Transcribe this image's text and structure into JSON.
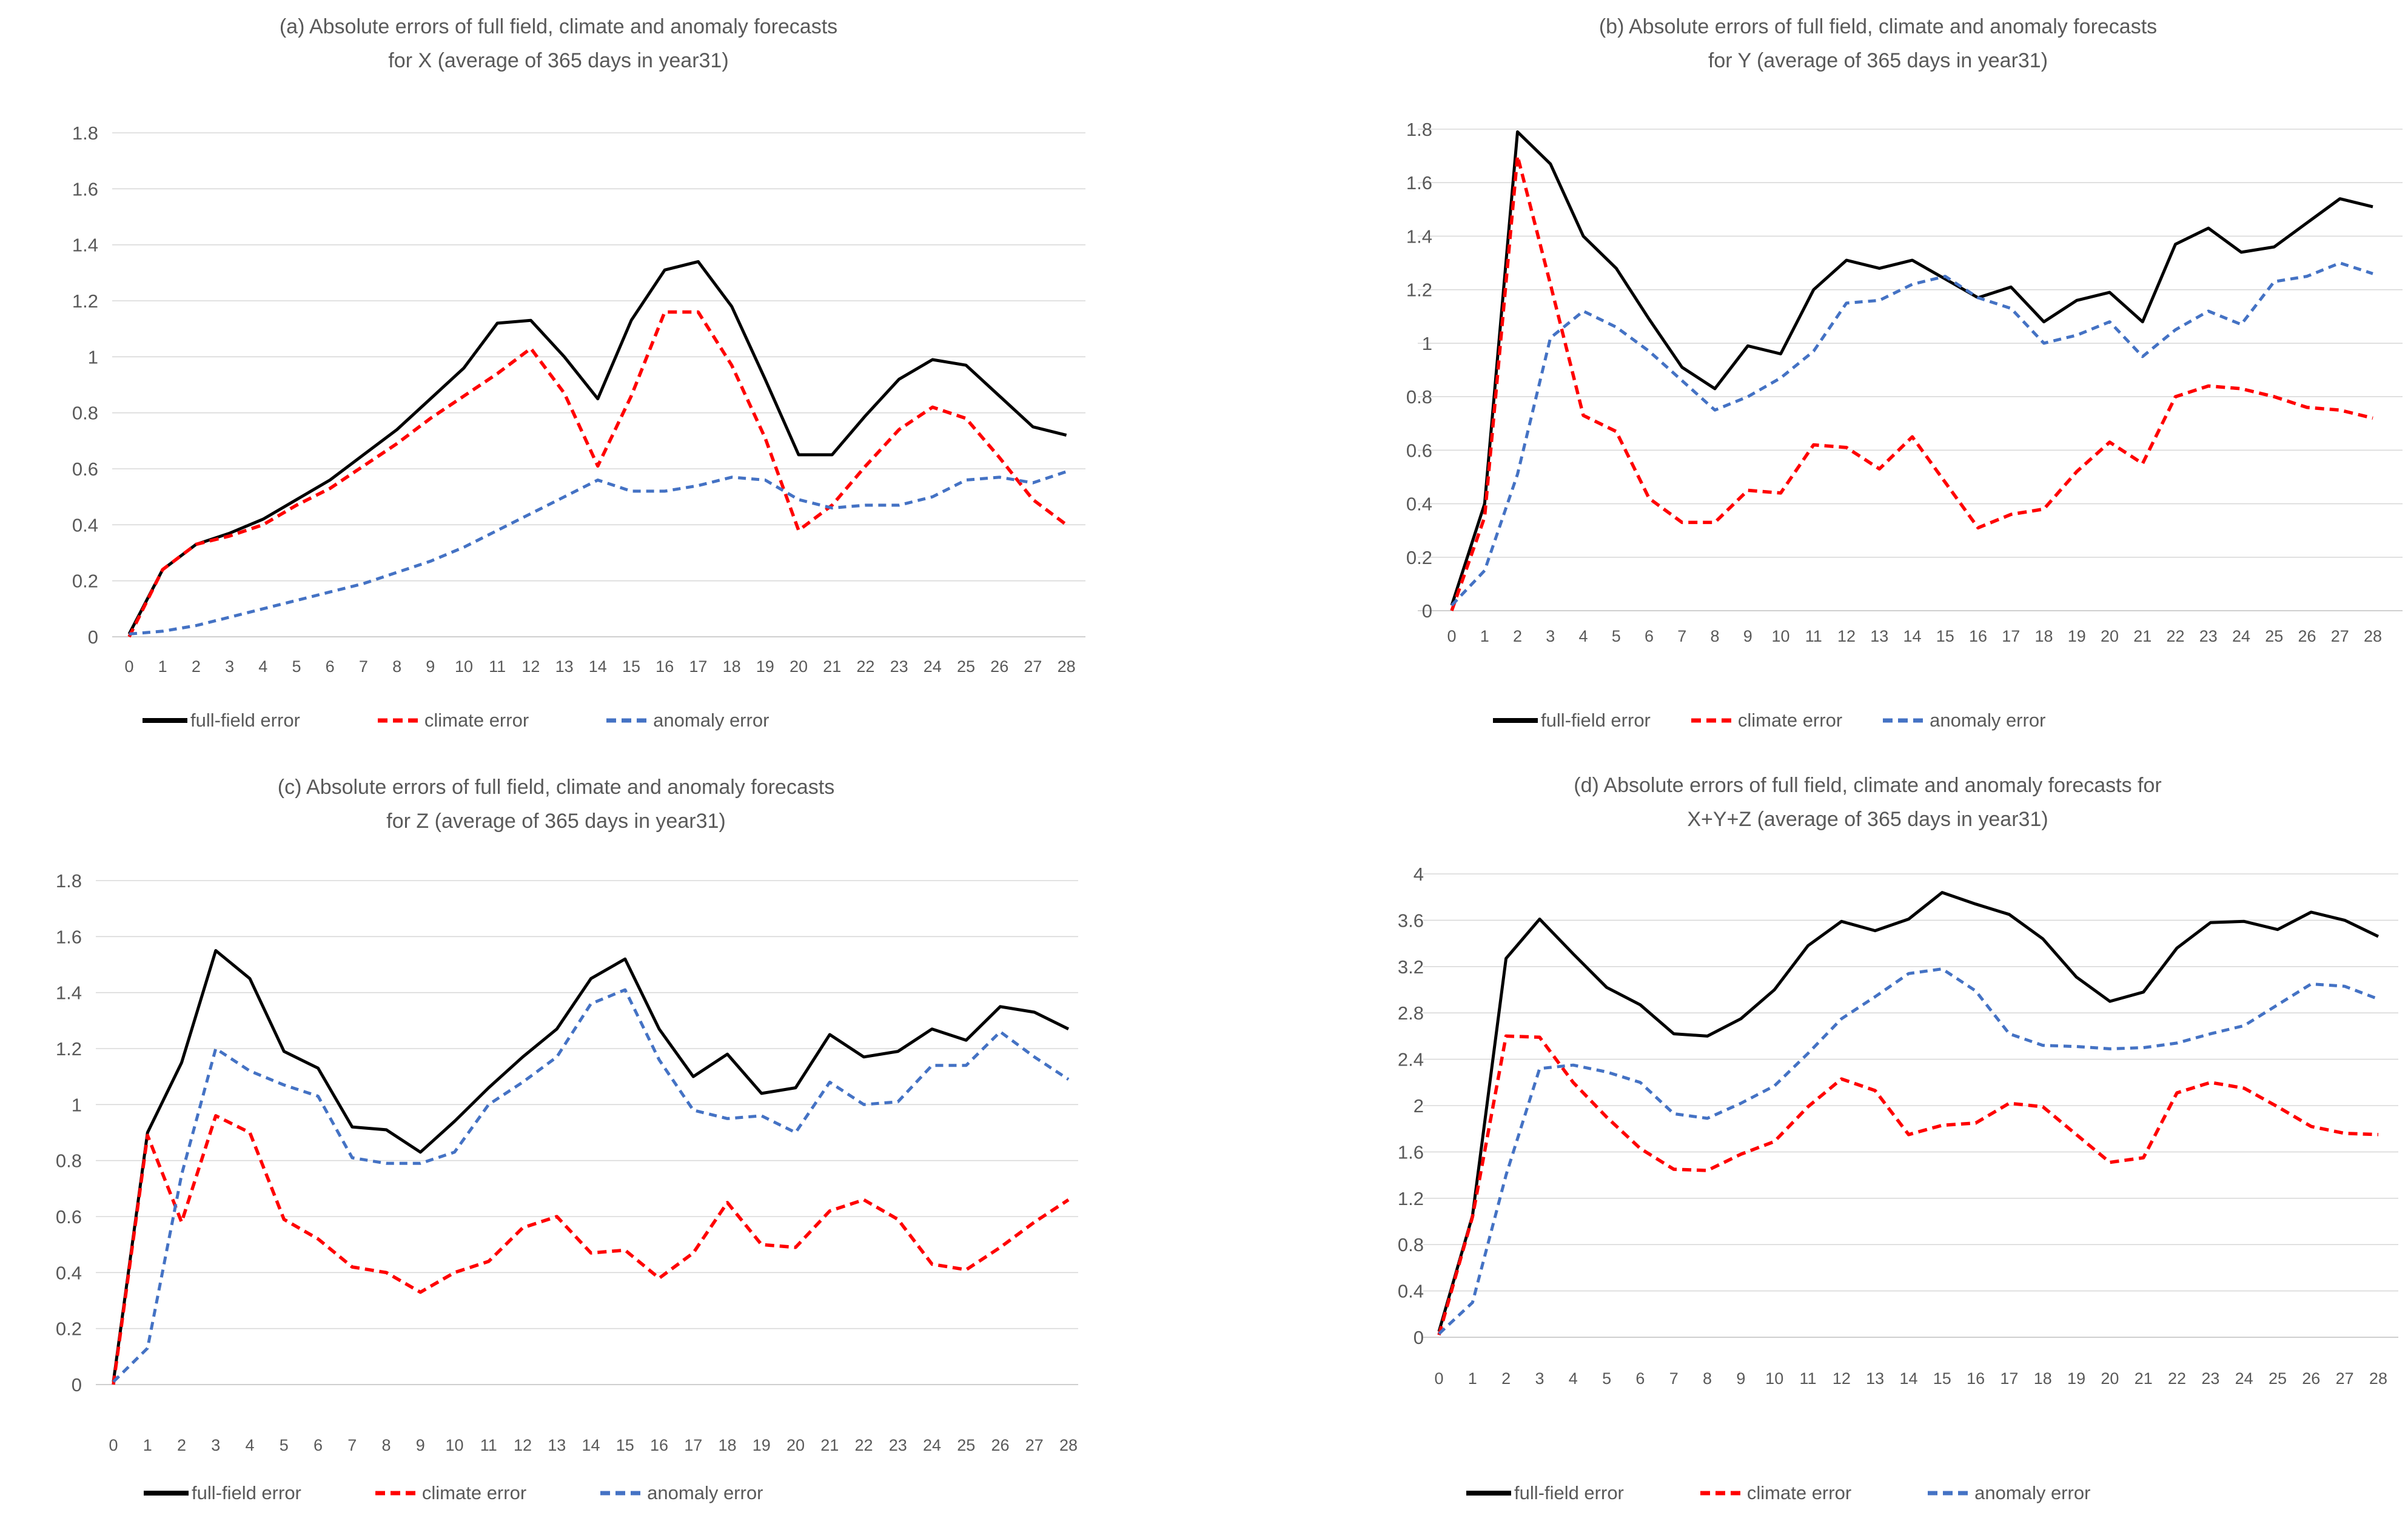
{
  "figure_title": "Absolute errors of full field, climate and anomaly forecasts for X, Y, Z and X+Y+Z",
  "colors": {
    "full_field": "#000000",
    "climate": "#ff0000",
    "anomaly": "#4472c4",
    "grid": "#d9d9d9",
    "axis": "#bfbfbf",
    "text": "#595959"
  },
  "legend_labels": [
    "full-field error",
    "climate error",
    "anomaly error"
  ],
  "chart_data": [
    {
      "id": "a",
      "type": "line",
      "title_line1": "(a) Absolute errors of full field, climate and anomaly forecasts",
      "title_line2": "for X (average of 365 days in year31)",
      "x": [
        0,
        1,
        2,
        3,
        4,
        5,
        6,
        7,
        8,
        9,
        10,
        11,
        12,
        13,
        14,
        15,
        16,
        17,
        18,
        19,
        20,
        21,
        22,
        23,
        24,
        25,
        26,
        27,
        28
      ],
      "ylim": [
        0,
        1.8
      ],
      "ytick_step": 0.2,
      "grid": true,
      "legend_position": "bottom",
      "series": [
        {
          "name": "full-field error",
          "values": [
            0.01,
            0.24,
            0.33,
            0.37,
            0.42,
            0.49,
            0.56,
            0.65,
            0.74,
            0.85,
            0.96,
            1.12,
            1.13,
            1.0,
            0.85,
            1.13,
            1.31,
            1.34,
            1.18,
            0.92,
            0.65,
            0.65,
            0.79,
            0.92,
            0.99,
            0.97,
            0.86,
            0.75,
            0.72
          ]
        },
        {
          "name": "climate error",
          "values": [
            0.0,
            0.24,
            0.33,
            0.36,
            0.4,
            0.47,
            0.53,
            0.61,
            0.69,
            0.78,
            0.86,
            0.94,
            1.03,
            0.87,
            0.61,
            0.86,
            1.16,
            1.16,
            0.97,
            0.71,
            0.38,
            0.47,
            0.61,
            0.74,
            0.82,
            0.78,
            0.64,
            0.49,
            0.4
          ]
        },
        {
          "name": "anomaly error",
          "values": [
            0.01,
            0.02,
            0.04,
            0.07,
            0.1,
            0.13,
            0.16,
            0.19,
            0.23,
            0.27,
            0.32,
            0.38,
            0.44,
            0.5,
            0.56,
            0.52,
            0.52,
            0.54,
            0.57,
            0.56,
            0.49,
            0.46,
            0.47,
            0.47,
            0.5,
            0.56,
            0.57,
            0.55,
            0.59
          ]
        }
      ]
    },
    {
      "id": "b",
      "type": "line",
      "title_line1": "(b) Absolute errors of full field, climate and anomaly forecasts",
      "title_line2": "for Y (average of 365 days in year31)",
      "x": [
        0,
        1,
        2,
        3,
        4,
        5,
        6,
        7,
        8,
        9,
        10,
        11,
        12,
        13,
        14,
        15,
        16,
        17,
        18,
        19,
        20,
        21,
        22,
        23,
        24,
        25,
        26,
        27,
        28
      ],
      "ylim": [
        0,
        1.8
      ],
      "ytick_step": 0.2,
      "grid": true,
      "legend_position": "bottom",
      "series": [
        {
          "name": "full-field error",
          "values": [
            0.02,
            0.4,
            1.79,
            1.67,
            1.4,
            1.28,
            1.09,
            0.91,
            0.83,
            0.99,
            0.96,
            1.2,
            1.31,
            1.28,
            1.31,
            1.24,
            1.17,
            1.21,
            1.08,
            1.16,
            1.19,
            1.08,
            1.37,
            1.43,
            1.34,
            1.36,
            1.45,
            1.54,
            1.51
          ]
        },
        {
          "name": "climate error",
          "values": [
            0.0,
            0.35,
            1.7,
            1.22,
            0.73,
            0.67,
            0.42,
            0.33,
            0.33,
            0.45,
            0.44,
            0.62,
            0.61,
            0.53,
            0.65,
            0.48,
            0.31,
            0.36,
            0.38,
            0.52,
            0.63,
            0.55,
            0.8,
            0.84,
            0.83,
            0.8,
            0.76,
            0.75,
            0.72
          ]
        },
        {
          "name": "anomaly error",
          "values": [
            0.02,
            0.15,
            0.51,
            1.02,
            1.12,
            1.06,
            0.97,
            0.86,
            0.75,
            0.8,
            0.87,
            0.97,
            1.15,
            1.16,
            1.22,
            1.25,
            1.17,
            1.13,
            1.0,
            1.03,
            1.08,
            0.95,
            1.05,
            1.12,
            1.07,
            1.23,
            1.25,
            1.3,
            1.26
          ]
        }
      ]
    },
    {
      "id": "c",
      "type": "line",
      "title_line1": "(c) Absolute errors of full field, climate and anomaly forecasts",
      "title_line2": "for Z (average of 365 days in year31)",
      "x": [
        0,
        1,
        2,
        3,
        4,
        5,
        6,
        7,
        8,
        9,
        10,
        11,
        12,
        13,
        14,
        15,
        16,
        17,
        18,
        19,
        20,
        21,
        22,
        23,
        24,
        25,
        26,
        27,
        28
      ],
      "ylim": [
        0,
        1.8
      ],
      "ytick_step": 0.2,
      "grid": true,
      "legend_position": "bottom",
      "series": [
        {
          "name": "full-field error",
          "values": [
            0.01,
            0.9,
            1.15,
            1.55,
            1.45,
            1.19,
            1.13,
            0.92,
            0.91,
            0.83,
            0.94,
            1.06,
            1.17,
            1.27,
            1.45,
            1.52,
            1.27,
            1.1,
            1.18,
            1.04,
            1.06,
            1.25,
            1.17,
            1.19,
            1.27,
            1.23,
            1.35,
            1.33,
            1.27
          ]
        },
        {
          "name": "climate error",
          "values": [
            0.0,
            0.89,
            0.58,
            0.96,
            0.9,
            0.59,
            0.52,
            0.42,
            0.4,
            0.33,
            0.4,
            0.44,
            0.56,
            0.6,
            0.47,
            0.48,
            0.38,
            0.47,
            0.65,
            0.5,
            0.49,
            0.62,
            0.66,
            0.59,
            0.43,
            0.41,
            0.49,
            0.58,
            0.66
          ]
        },
        {
          "name": "anomaly error",
          "values": [
            0.01,
            0.13,
            0.75,
            1.2,
            1.12,
            1.07,
            1.03,
            0.81,
            0.79,
            0.79,
            0.83,
            1.0,
            1.08,
            1.17,
            1.36,
            1.41,
            1.16,
            0.98,
            0.95,
            0.96,
            0.9,
            1.08,
            1.0,
            1.01,
            1.14,
            1.14,
            1.26,
            1.17,
            1.09
          ]
        }
      ]
    },
    {
      "id": "d",
      "type": "line",
      "title_line1": "(d) Absolute errors of full field, climate and anomaly forecasts for",
      "title_line2": "X+Y+Z (average of 365 days in year31)",
      "x": [
        0,
        1,
        2,
        3,
        4,
        5,
        6,
        7,
        8,
        9,
        10,
        11,
        12,
        13,
        14,
        15,
        16,
        17,
        18,
        19,
        20,
        21,
        22,
        23,
        24,
        25,
        26,
        27,
        28
      ],
      "ylim": [
        0,
        4
      ],
      "ytick_step": 0.4,
      "grid": true,
      "legend_position": "bottom",
      "series": [
        {
          "name": "full-field error",
          "values": [
            0.05,
            1.05,
            3.27,
            3.61,
            3.31,
            3.02,
            2.87,
            2.62,
            2.6,
            2.75,
            3.0,
            3.38,
            3.59,
            3.51,
            3.61,
            3.84,
            3.74,
            3.65,
            3.44,
            3.11,
            2.9,
            2.98,
            3.36,
            3.58,
            3.59,
            3.52,
            3.67,
            3.6,
            3.46
          ]
        },
        {
          "name": "climate error",
          "values": [
            0.02,
            1.04,
            2.6,
            2.59,
            2.2,
            1.9,
            1.63,
            1.45,
            1.44,
            1.58,
            1.69,
            1.99,
            2.23,
            2.13,
            1.75,
            1.83,
            1.85,
            2.02,
            1.99,
            1.75,
            1.51,
            1.55,
            2.11,
            2.2,
            2.15,
            1.99,
            1.82,
            1.76,
            1.75
          ]
        },
        {
          "name": "anomaly error",
          "values": [
            0.03,
            0.3,
            1.4,
            2.32,
            2.35,
            2.29,
            2.2,
            1.93,
            1.89,
            2.02,
            2.17,
            2.45,
            2.75,
            2.94,
            3.14,
            3.18,
            2.99,
            2.62,
            2.52,
            2.51,
            2.49,
            2.5,
            2.54,
            2.62,
            2.69,
            2.87,
            3.05,
            3.03,
            2.92
          ]
        }
      ]
    }
  ]
}
